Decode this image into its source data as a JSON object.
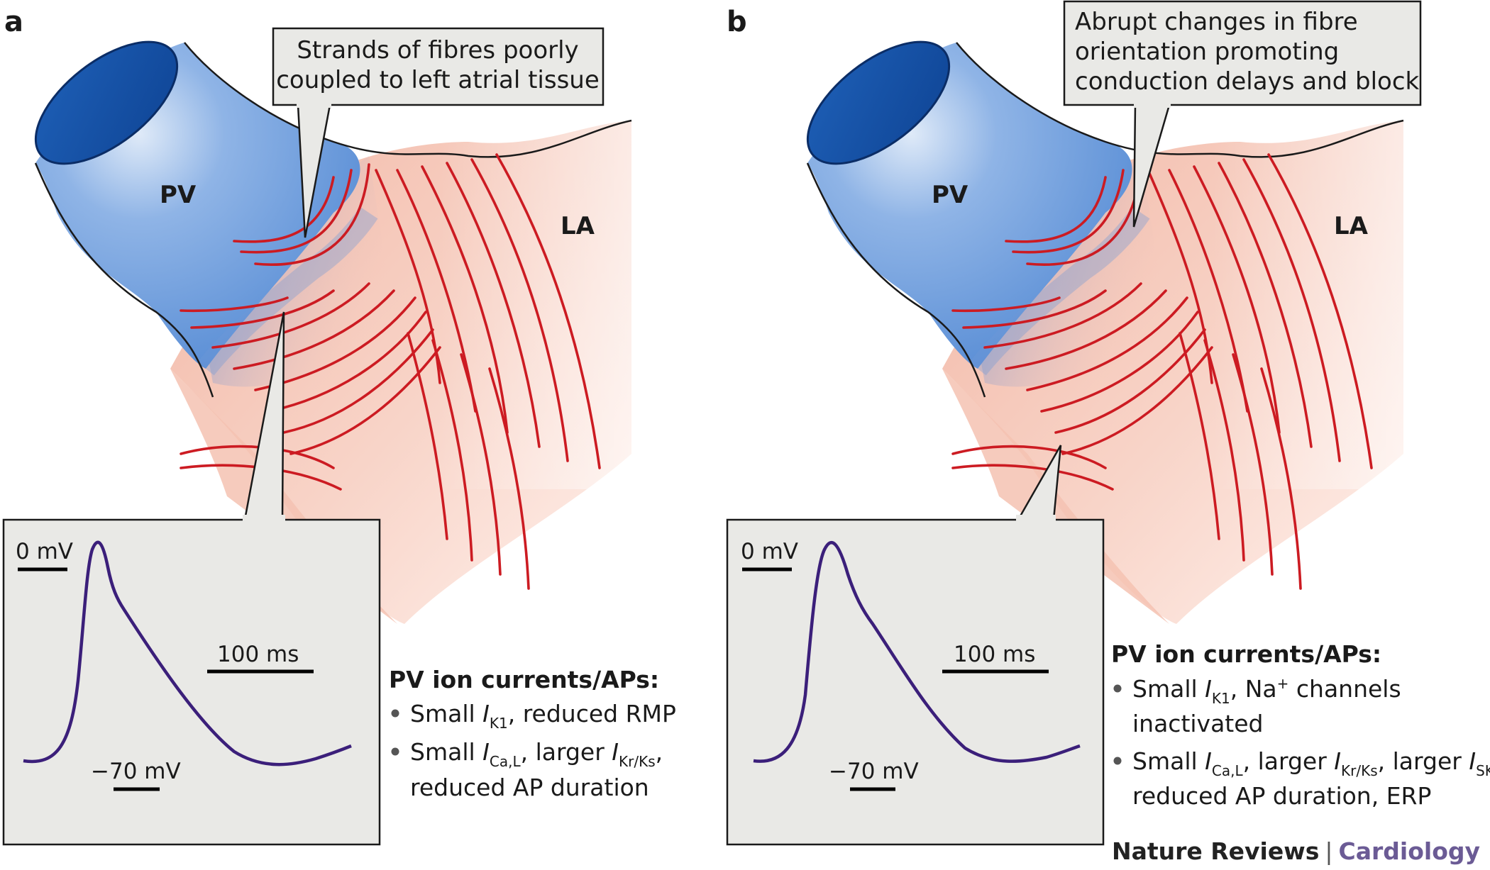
{
  "footer": {
    "journal": "Nature Reviews",
    "separator": "|",
    "specialty": "Cardiology",
    "specialty_color": "#6b5b95"
  },
  "colors": {
    "vein": "#5b8fd6",
    "atrium": "#f6c3b3",
    "fibre": "#cc1b22",
    "trace": "#3b1f7a",
    "box": "#e9e9e6"
  },
  "panels": [
    {
      "letter": "a",
      "vessel_label": "PV",
      "chamber_label": "LA",
      "callout": [
        "Strands of fibres poorly",
        "coupled to left atrial tissue"
      ],
      "trace": {
        "zero_label": "0 mV",
        "rest_label": "−70 mV",
        "scale_label": "100 ms"
      },
      "currents_heading": "PV ion currents/APs:",
      "bullet1": {
        "pre": "Small ",
        "sym": "I",
        "sub": "K1",
        "post": ", reduced RMP"
      },
      "bullet2": {
        "pre": "Small ",
        "sym": "I",
        "sub": "Ca,L",
        "mid": ", larger ",
        "sym2": "I",
        "sub2": "Kr/Ks",
        "post": ",",
        "line2": "reduced AP duration"
      }
    },
    {
      "letter": "b",
      "vessel_label": "PV",
      "chamber_label": "LA",
      "callout": [
        "Abrupt changes in fibre",
        "orientation promoting",
        "conduction delays and block"
      ],
      "trace": {
        "zero_label": "0 mV",
        "rest_label": "−70 mV",
        "scale_label": "100 ms"
      },
      "currents_heading": "PV ion currents/APs:",
      "bullet1": {
        "pre": "Small ",
        "sym": "I",
        "sub": "K1",
        "mid": ", Na",
        "sup": "+",
        "post": " channels",
        "line2": "inactivated"
      },
      "bullet2": {
        "pre": "Small ",
        "sym": "I",
        "sub": "Ca,L",
        "mid": ", larger ",
        "sym2": "I",
        "sub2": "Kr/Ks",
        "mid2": ", larger ",
        "sym3": "I",
        "sub3": "SK",
        "post": ",",
        "line2": "reduced AP duration, ERP"
      }
    }
  ]
}
